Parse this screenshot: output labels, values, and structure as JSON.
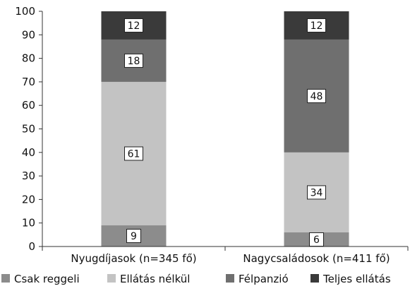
{
  "chart_data": {
    "type": "bar",
    "stacked": true,
    "categories": [
      "Nyugdíjasok (n=345 fő)",
      "Nagycsaládosok (n=411 fő)"
    ],
    "series": [
      {
        "name": "Csak reggeli",
        "values": [
          9,
          6
        ],
        "color": "#8c8c8c"
      },
      {
        "name": "Ellátás nélkül",
        "values": [
          61,
          34
        ],
        "color": "#c3c3c3"
      },
      {
        "name": "Félpanzió",
        "values": [
          18,
          48
        ],
        "color": "#6f6f6f"
      },
      {
        "name": "Teljes ellátás",
        "values": [
          12,
          12
        ],
        "color": "#3a3a3a"
      }
    ],
    "ylim": [
      0,
      100
    ],
    "yticks": [
      0,
      10,
      20,
      30,
      40,
      50,
      60,
      70,
      80,
      90,
      100
    ],
    "grid": false,
    "legend_position": "bottom"
  }
}
